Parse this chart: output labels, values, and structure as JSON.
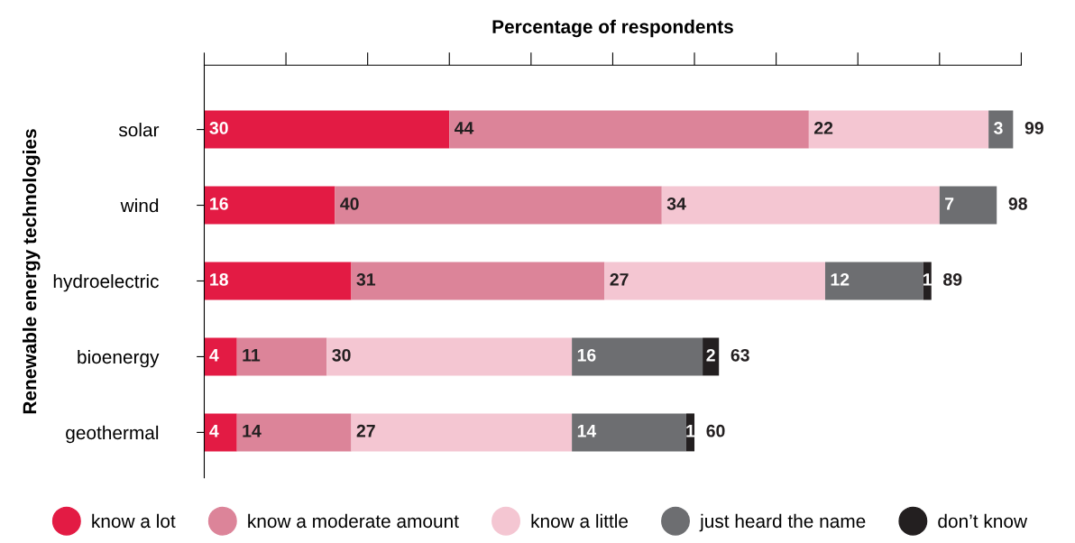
{
  "chart_data": {
    "type": "bar",
    "orientation": "horizontal",
    "stacked": true,
    "xlabel": "Percentage of respondents",
    "ylabel": "Renewable energy technologies",
    "categories": [
      "solar",
      "wind",
      "hydroelectric",
      "bioenergy",
      "geothermal"
    ],
    "series": [
      {
        "name": "know a lot",
        "color": "#e31b44",
        "values": [
          30,
          16,
          18,
          4,
          4
        ]
      },
      {
        "name": "know a moderate amount",
        "color": "#dc8499",
        "values": [
          44,
          40,
          31,
          11,
          14
        ]
      },
      {
        "name": "know a little",
        "color": "#f4c6d2",
        "values": [
          22,
          34,
          27,
          30,
          27
        ]
      },
      {
        "name": "just heard the name",
        "color": "#6d6e71",
        "values": [
          3,
          7,
          12,
          16,
          14
        ]
      },
      {
        "name": "don’t know",
        "color": "#231f20",
        "values": [
          null,
          null,
          1,
          2,
          1
        ]
      }
    ],
    "totals": [
      "99",
      "98",
      "89",
      "63",
      "60"
    ],
    "data_labels": true,
    "xlim": [
      0,
      100
    ],
    "xticks": [
      {
        "value": 0,
        "label": null
      },
      {
        "value": 10,
        "label": null
      },
      {
        "value": 20,
        "label": null
      },
      {
        "value": 30,
        "label": null
      },
      {
        "value": 40,
        "label": null
      },
      {
        "value": 50,
        "label": null
      },
      {
        "value": 60,
        "label": null
      },
      {
        "value": 70,
        "label": null
      },
      {
        "value": 80,
        "label": null
      },
      {
        "value": 90,
        "label": null
      },
      {
        "value": 100,
        "label": null
      }
    ],
    "tick_labels": "y",
    "grid": false,
    "legend": "bottom"
  }
}
